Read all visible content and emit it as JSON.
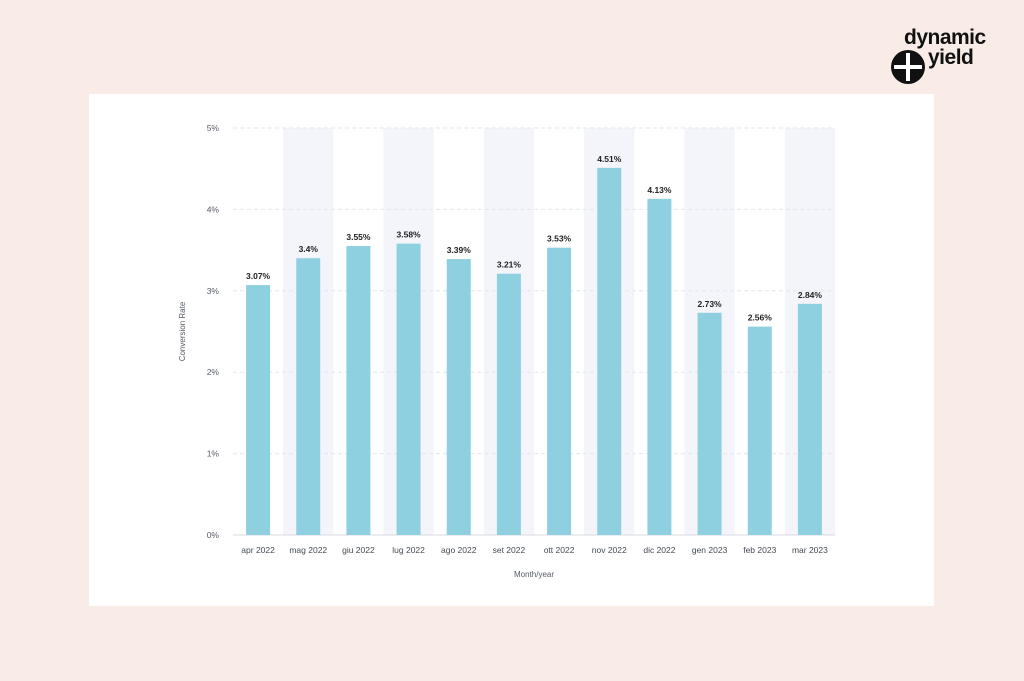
{
  "brand": {
    "logo_line1": "dynamic",
    "logo_line2": "yield",
    "logo_icon": "dynamic-yield-logo-mark"
  },
  "colors": {
    "page_background": "#f9ebe5",
    "card_background": "#ffffff",
    "bar": "#8fd0e0",
    "band": "#f3f5fa",
    "grid": "#e3e6ec"
  },
  "chart_data": {
    "type": "bar",
    "categories": [
      "apr 2022",
      "mag 2022",
      "giu 2022",
      "lug 2022",
      "ago 2022",
      "set 2022",
      "ott 2022",
      "nov 2022",
      "dic 2022",
      "gen 2023",
      "feb 2023",
      "mar 2023"
    ],
    "values": [
      3.07,
      3.4,
      3.55,
      3.58,
      3.39,
      3.21,
      3.53,
      4.51,
      4.13,
      2.73,
      2.56,
      2.84
    ],
    "data_labels": [
      "3.07%",
      "3.4%",
      "3.55%",
      "3.58%",
      "3.39%",
      "3.21%",
      "3.53%",
      "4.51%",
      "4.13%",
      "2.73%",
      "2.56%",
      "2.84%"
    ],
    "xlabel": "Month/year",
    "ylabel": "Conversion Rate",
    "ylim": [
      0,
      5
    ],
    "yticks": [
      0,
      1,
      2,
      3,
      4,
      5
    ],
    "ytick_labels": [
      "0%",
      "1%",
      "2%",
      "3%",
      "4%",
      "5%"
    ],
    "grid": true,
    "alternate_column_shading": true
  }
}
